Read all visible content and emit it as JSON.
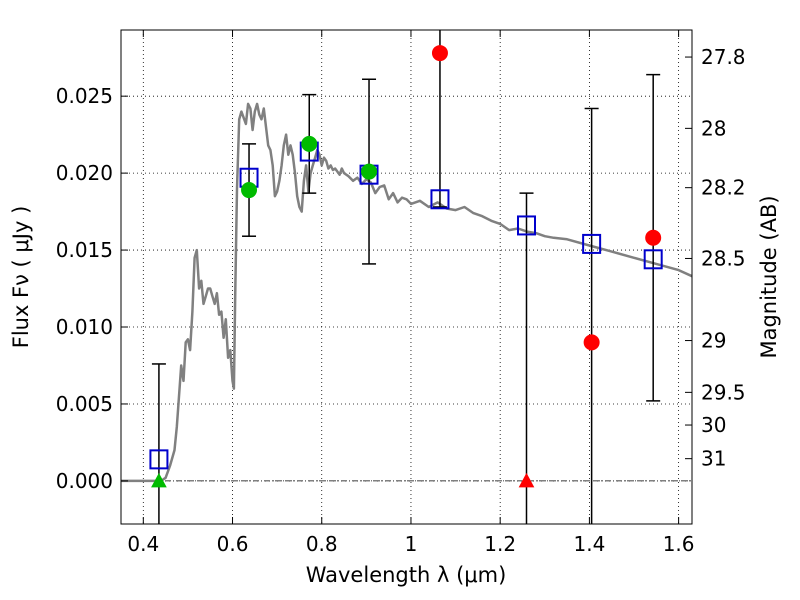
{
  "chart_data": {
    "type": "scatter",
    "xlabel": "Wavelength  λ (μm)",
    "ylabel": "Flux  Fν  ( μJy )",
    "ylabel_right": "Magnitude (AB)",
    "xlim": [
      0.35,
      1.63
    ],
    "ylim": [
      -0.0028,
      0.0293
    ],
    "x_ticks": [
      0.4,
      0.6,
      0.8,
      1.0,
      1.2,
      1.4,
      1.6
    ],
    "x_tick_labels": [
      "0.4",
      "0.6",
      "0.8",
      "1",
      "1.2",
      "1.4",
      "1.6"
    ],
    "y_ticks": [
      0.0,
      0.005,
      0.01,
      0.015,
      0.02,
      0.025
    ],
    "y_tick_labels": [
      "0.000",
      "0.005",
      "0.010",
      "0.015",
      "0.020",
      "0.025"
    ],
    "right_ticks": [
      27.8,
      28.0,
      28.2,
      28.5,
      29.0,
      29.5,
      30.0,
      31.0
    ],
    "right_tick_labels": [
      "27.8",
      "28",
      "28.2",
      "28.5",
      "29",
      "29.5",
      "30",
      "31"
    ],
    "grid": true,
    "series": [
      {
        "kind": "model_sed",
        "color": "#808080",
        "x": [
          0.35,
          0.43,
          0.44,
          0.45,
          0.46,
          0.47,
          0.475,
          0.48,
          0.485,
          0.49,
          0.495,
          0.5,
          0.505,
          0.51,
          0.515,
          0.52,
          0.525,
          0.53,
          0.535,
          0.54,
          0.545,
          0.55,
          0.555,
          0.56,
          0.565,
          0.57,
          0.575,
          0.58,
          0.585,
          0.59,
          0.595,
          0.6,
          0.603,
          0.606,
          0.61,
          0.615,
          0.62,
          0.63,
          0.635,
          0.64,
          0.645,
          0.65,
          0.655,
          0.66,
          0.665,
          0.67,
          0.675,
          0.68,
          0.685,
          0.69,
          0.695,
          0.7,
          0.705,
          0.71,
          0.715,
          0.72,
          0.725,
          0.73,
          0.735,
          0.74,
          0.745,
          0.75,
          0.755,
          0.76,
          0.765,
          0.77,
          0.775,
          0.78,
          0.785,
          0.79,
          0.795,
          0.8,
          0.805,
          0.81,
          0.815,
          0.82,
          0.825,
          0.83,
          0.835,
          0.84,
          0.845,
          0.85,
          0.86,
          0.87,
          0.88,
          0.89,
          0.9,
          0.91,
          0.92,
          0.93,
          0.94,
          0.95,
          0.96,
          0.97,
          0.98,
          0.99,
          1.0,
          1.02,
          1.04,
          1.06,
          1.08,
          1.1,
          1.12,
          1.14,
          1.16,
          1.18,
          1.2,
          1.22,
          1.24,
          1.26,
          1.28,
          1.3,
          1.32,
          1.35,
          1.4,
          1.45,
          1.5,
          1.55,
          1.6,
          1.63
        ],
        "y": [
          0.0,
          0.0,
          0.0,
          0.0002,
          0.001,
          0.002,
          0.0035,
          0.0055,
          0.0075,
          0.0065,
          0.009,
          0.0092,
          0.0085,
          0.011,
          0.0145,
          0.015,
          0.0125,
          0.013,
          0.0115,
          0.012,
          0.0125,
          0.0125,
          0.012,
          0.0115,
          0.0122,
          0.0108,
          0.011,
          0.0093,
          0.0105,
          0.008,
          0.0085,
          0.0065,
          0.006,
          0.012,
          0.019,
          0.0235,
          0.024,
          0.0232,
          0.0245,
          0.0242,
          0.0228,
          0.024,
          0.0245,
          0.0238,
          0.0235,
          0.0242,
          0.023,
          0.0218,
          0.0215,
          0.0205,
          0.0185,
          0.0188,
          0.0195,
          0.0205,
          0.0218,
          0.0225,
          0.0212,
          0.0218,
          0.0212,
          0.02,
          0.0185,
          0.0178,
          0.0175,
          0.0195,
          0.0205,
          0.0188,
          0.02,
          0.0205,
          0.021,
          0.0215,
          0.0212,
          0.0205,
          0.021,
          0.0208,
          0.0203,
          0.0205,
          0.0202,
          0.0203,
          0.0201,
          0.0199,
          0.0203,
          0.02,
          0.0198,
          0.0195,
          0.0197,
          0.0193,
          0.0196,
          0.0194,
          0.0187,
          0.0191,
          0.0192,
          0.0183,
          0.0187,
          0.0181,
          0.0184,
          0.0183,
          0.018,
          0.0182,
          0.0178,
          0.0181,
          0.0177,
          0.0176,
          0.0178,
          0.0174,
          0.0172,
          0.0169,
          0.0167,
          0.0163,
          0.0164,
          0.0162,
          0.0161,
          0.0159,
          0.0158,
          0.0157,
          0.0153,
          0.0149,
          0.0145,
          0.0141,
          0.0137,
          0.0133
        ]
      },
      {
        "kind": "model_photometry",
        "marker": "open-square",
        "color": "#0000cc",
        "x": [
          0.435,
          0.637,
          0.772,
          0.906,
          1.065,
          1.259,
          1.405,
          1.543
        ],
        "y": [
          0.0014,
          0.0197,
          0.0214,
          0.0199,
          0.0183,
          0.0166,
          0.0154,
          0.0144
        ]
      },
      {
        "kind": "observed_detection",
        "marker": "circle",
        "color": "#00bb00",
        "x": [
          0.637,
          0.772,
          0.906
        ],
        "y": [
          0.0189,
          0.0219,
          0.0201
        ],
        "yerr": [
          0.003,
          0.0032,
          0.006
        ]
      },
      {
        "kind": "observed_detection",
        "marker": "circle",
        "color": "#ff0000",
        "x": [
          1.065,
          1.405,
          1.543
        ],
        "y": [
          0.0278,
          0.009,
          0.0158
        ],
        "yerr": [
          0.01,
          0.0152,
          0.0106
        ]
      },
      {
        "kind": "non_detection",
        "marker": "triangle",
        "color": "#00bb00",
        "x": [
          0.435
        ],
        "y": [
          0.0
        ],
        "yerr": [
          0.0076
        ]
      },
      {
        "kind": "non_detection",
        "marker": "triangle",
        "color": "#ff0000",
        "x": [
          1.259
        ],
        "y": [
          0.0
        ],
        "yerr": [
          0.0187
        ]
      }
    ]
  }
}
